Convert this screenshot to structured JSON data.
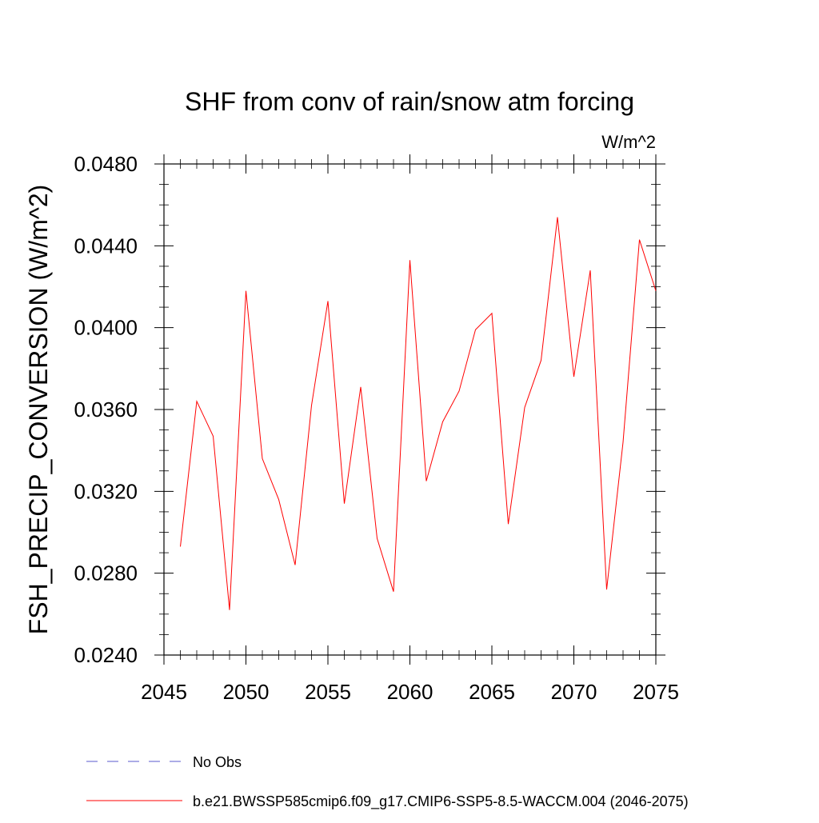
{
  "chart_data": {
    "type": "line",
    "title": "SHF from conv of rain/snow atm forcing",
    "units_label": "W/m^2",
    "ylabel": "FSH_PRECIP_CONVERSION  (W/m^2)",
    "xlabel": "",
    "xlim": [
      2045,
      2075
    ],
    "ylim": [
      0.024,
      0.048
    ],
    "x_ticks": [
      2045,
      2050,
      2055,
      2060,
      2065,
      2070,
      2075
    ],
    "x_tick_labels": [
      "2045",
      "2050",
      "2055",
      "2060",
      "2065",
      "2070",
      "2075"
    ],
    "y_ticks": [
      0.024,
      0.028,
      0.032,
      0.036,
      0.04,
      0.044,
      0.048
    ],
    "y_tick_labels": [
      "0.0240",
      "0.0280",
      "0.0320",
      "0.0360",
      "0.0400",
      "0.0440",
      "0.0480"
    ],
    "grid": false,
    "legend_position": "bottom",
    "series": [
      {
        "name": "b.e21.BWSSP585cmip6.f09_g17.CMIP6-SSP5-8.5-WACCM.004 (2046-2075)",
        "color": "#ff0000",
        "style": "solid",
        "x": [
          2046,
          2047,
          2048,
          2049,
          2050,
          2051,
          2052,
          2053,
          2054,
          2055,
          2056,
          2057,
          2058,
          2059,
          2060,
          2061,
          2062,
          2063,
          2064,
          2065,
          2066,
          2067,
          2068,
          2069,
          2070,
          2071,
          2072,
          2073,
          2074,
          2075
        ],
        "y": [
          0.0293,
          0.0364,
          0.0347,
          0.0262,
          0.0418,
          0.0336,
          0.0316,
          0.0284,
          0.0362,
          0.0413,
          0.0314,
          0.0371,
          0.0297,
          0.0271,
          0.0433,
          0.0325,
          0.0354,
          0.0369,
          0.0399,
          0.0407,
          0.0304,
          0.0361,
          0.0384,
          0.0454,
          0.0376,
          0.0428,
          0.0272,
          0.0344,
          0.0443,
          0.0418
        ]
      }
    ],
    "legend": [
      {
        "label": "No Obs",
        "color": "#5a5acd",
        "style": "dashed"
      },
      {
        "label": "b.e21.BWSSP585cmip6.f09_g17.CMIP6-SSP5-8.5-WACCM.004 (2046-2075)",
        "color": "#ff0000",
        "style": "solid"
      }
    ]
  }
}
